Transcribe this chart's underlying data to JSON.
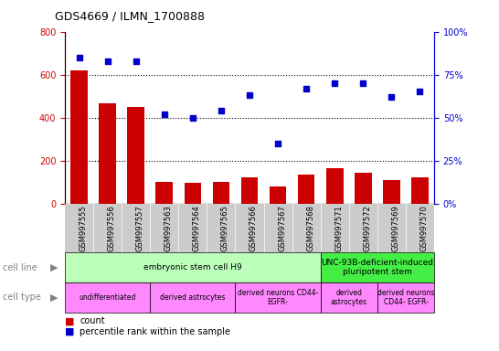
{
  "title": "GDS4669 / ILMN_1700888",
  "samples": [
    "GSM997555",
    "GSM997556",
    "GSM997557",
    "GSM997563",
    "GSM997564",
    "GSM997565",
    "GSM997566",
    "GSM997567",
    "GSM997568",
    "GSM997571",
    "GSM997572",
    "GSM997569",
    "GSM997570"
  ],
  "counts": [
    620,
    465,
    450,
    100,
    95,
    100,
    120,
    80,
    135,
    165,
    145,
    110,
    120
  ],
  "percentiles": [
    85,
    83,
    83,
    52,
    50,
    54,
    63,
    35,
    67,
    70,
    70,
    62,
    65
  ],
  "bar_color": "#cc0000",
  "dot_color": "#0000cc",
  "ylim_left": [
    0,
    800
  ],
  "ylim_right": [
    0,
    100
  ],
  "yticks_left": [
    0,
    200,
    400,
    600,
    800
  ],
  "yticks_right": [
    0,
    25,
    50,
    75,
    100
  ],
  "cell_line_groups": [
    {
      "label": "embryonic stem cell H9",
      "start": 0,
      "end": 9,
      "color": "#bbffbb"
    },
    {
      "label": "UNC-93B-deficient-induced\npluripotent stem",
      "start": 9,
      "end": 13,
      "color": "#44ee44"
    }
  ],
  "cell_type_groups": [
    {
      "label": "undifferentiated",
      "start": 0,
      "end": 3,
      "color": "#ff88ff"
    },
    {
      "label": "derived astrocytes",
      "start": 3,
      "end": 6,
      "color": "#ff88ff"
    },
    {
      "label": "derived neurons CD44-\nEGFR-",
      "start": 6,
      "end": 9,
      "color": "#ff88ff"
    },
    {
      "label": "derived\nastrocytes",
      "start": 9,
      "end": 11,
      "color": "#ff88ff"
    },
    {
      "label": "derived neurons\nCD44- EGFR-",
      "start": 11,
      "end": 13,
      "color": "#ff88ff"
    }
  ],
  "legend_count_label": "count",
  "legend_pct_label": "percentile rank within the sample",
  "tick_label_color_left": "#cc0000",
  "tick_label_color_right": "#0000cc",
  "xticklabel_bg": "#cccccc",
  "grid_dotted_values": [
    200,
    400,
    600
  ],
  "ytick_label_fontsize": 7,
  "xtick_label_fontsize": 6
}
